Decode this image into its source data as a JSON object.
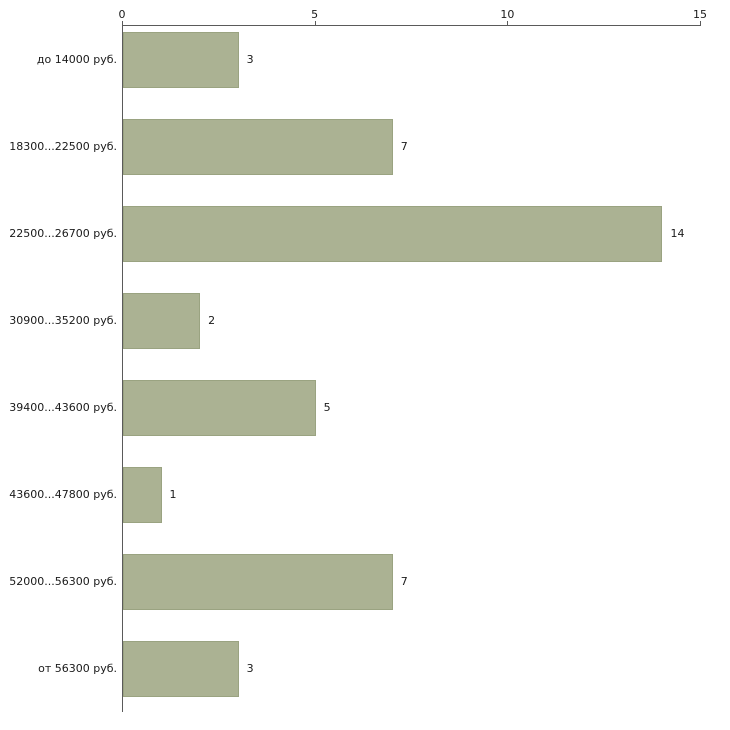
{
  "chart_data": {
    "type": "bar",
    "orientation": "horizontal",
    "title": "",
    "xlabel": "",
    "ylabel": "",
    "categories": [
      "до 14000 руб.",
      "18300...22500 руб.",
      "22500...26700 руб.",
      "30900...35200 руб.",
      "39400...43600 руб.",
      "43600...47800 руб.",
      "52000...56300 руб.",
      "от 56300 руб."
    ],
    "values": [
      3,
      7,
      14,
      2,
      5,
      1,
      7,
      3
    ],
    "value_labels": [
      "3",
      "7",
      "14",
      "2",
      "5",
      "1",
      "7",
      "3"
    ],
    "x_ticks": [
      0,
      5,
      10,
      15
    ],
    "x_tick_labels": [
      "0",
      "5",
      "10",
      "15"
    ],
    "xlim": [
      0,
      15
    ],
    "grid": false,
    "legend": "none",
    "bar_color": "#abb293",
    "bar_border_color": "#9aa381",
    "axis_color": "#5a5a5a",
    "text_color": "#1a1a1a",
    "background_color": "#ffffff"
  }
}
